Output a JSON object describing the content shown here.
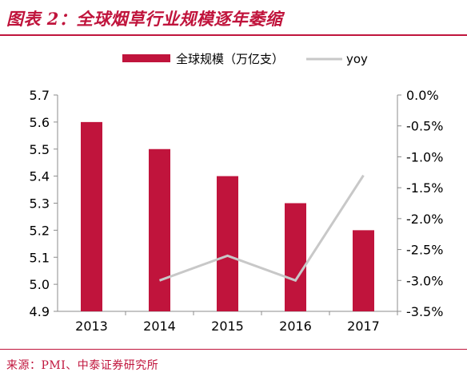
{
  "title": "图表 2：全球烟草行业规模逐年萎缩",
  "source": "来源：PMI、中泰证券研究所",
  "colors": {
    "accent": "#c0143c",
    "bar": "#c0143c",
    "line": "#c8c8c8",
    "axis": "#8c8c8c"
  },
  "chart_data": {
    "type": "bar",
    "categories": [
      "2013",
      "2014",
      "2015",
      "2016",
      "2017"
    ],
    "series": [
      {
        "name": "全球规模（万亿支）",
        "type": "bar",
        "axis": "left",
        "values": [
          5.6,
          5.5,
          5.4,
          5.3,
          5.2
        ]
      },
      {
        "name": "yoy",
        "type": "line",
        "axis": "right",
        "values": [
          null,
          -3.0,
          -2.6,
          -3.0,
          -1.3
        ]
      }
    ],
    "y_left": {
      "min": 4.9,
      "max": 5.7,
      "ticks": [
        "4.9",
        "5.0",
        "5.1",
        "5.2",
        "5.3",
        "5.4",
        "5.5",
        "5.6",
        "5.7"
      ]
    },
    "y_right": {
      "min": -3.5,
      "max": 0.0,
      "ticks": [
        "0.0%",
        "-0.5%",
        "-1.0%",
        "-1.5%",
        "-2.0%",
        "-2.5%",
        "-3.0%",
        "-3.5%"
      ]
    },
    "grid": false,
    "legend_position": "top-center"
  }
}
